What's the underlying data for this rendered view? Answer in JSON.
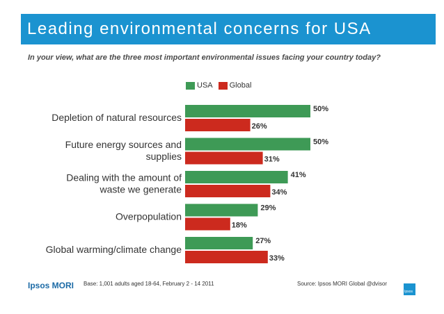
{
  "title": "Leading environmental concerns for USA",
  "subtitle": "In your view, what are the three most important environmental issues facing your country today?",
  "legend": {
    "usa": "USA",
    "global": "Global"
  },
  "colors": {
    "usa": "#3e9a56",
    "global": "#cc2a1e",
    "title_band": "#1b93d0"
  },
  "chart_data": {
    "type": "bar",
    "orientation": "horizontal",
    "categories": [
      [
        "Depletion of natural resources"
      ],
      [
        "Future energy sources and",
        "supplies"
      ],
      [
        "Dealing with the amount of",
        "waste we generate"
      ],
      [
        "Overpopulation"
      ],
      [
        "Global warming/climate change"
      ]
    ],
    "series": [
      {
        "name": "USA",
        "values": [
          50,
          50,
          41,
          29,
          27
        ]
      },
      {
        "name": "Global",
        "values": [
          26,
          31,
          34,
          18,
          33
        ]
      }
    ],
    "value_suffix": "%",
    "xlim": [
      0,
      50
    ],
    "legend_position": "top"
  },
  "footer": {
    "logo": "Ipsos MORI",
    "base": "Base: 1,001 adults aged 18-64, February 2 - 14 2011",
    "source": "Source: Ipsos MORI Global @dvisor",
    "corner_logo": "Ipsos"
  }
}
